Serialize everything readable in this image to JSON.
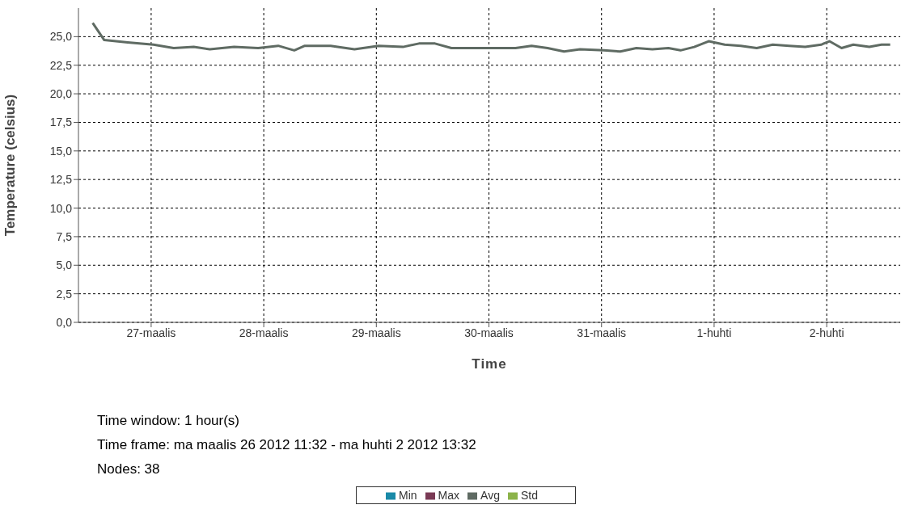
{
  "chart_data": {
    "type": "line",
    "xlabel": "Time",
    "ylabel": "Temperature (celsius)",
    "annotations": [
      "Time window: 1 hour(s)",
      "Time frame: ma maalis 26 2012 11:32 - ma huhti 2 2012 13:32",
      "Nodes: 38"
    ],
    "xlim": [
      "2012-03-26T08:30",
      "2012-04-02T15:40"
    ],
    "xticks": [
      {
        "value": "2012-03-27",
        "label": "27-maalis"
      },
      {
        "value": "2012-03-28",
        "label": "28-maalis"
      },
      {
        "value": "2012-03-29",
        "label": "29-maalis"
      },
      {
        "value": "2012-03-30",
        "label": "30-maalis"
      },
      {
        "value": "2012-03-31",
        "label": "31-maalis"
      },
      {
        "value": "2012-04-01",
        "label": "1-huhti"
      },
      {
        "value": "2012-04-02",
        "label": "2-huhti"
      }
    ],
    "ylim": [
      0,
      27.5
    ],
    "yticks": [
      {
        "value": 0,
        "label": "0,0"
      },
      {
        "value": 2.5,
        "label": "2,5"
      },
      {
        "value": 5,
        "label": "5,0"
      },
      {
        "value": 7.5,
        "label": "7,5"
      },
      {
        "value": 10,
        "label": "10,0"
      },
      {
        "value": 12.5,
        "label": "12,5"
      },
      {
        "value": 15,
        "label": "15,0"
      },
      {
        "value": 17.5,
        "label": "17,5"
      },
      {
        "value": 20,
        "label": "20,0"
      },
      {
        "value": 22.5,
        "label": "22,5"
      },
      {
        "value": 25,
        "label": "25,0"
      }
    ],
    "grid": true,
    "legend": "bottom",
    "marker": "none",
    "line_style": "solid",
    "series": [
      {
        "name": "Min",
        "color": "#1a8aa8"
      },
      {
        "name": "Max",
        "color": "#7a3a55"
      },
      {
        "name": "Avg",
        "color": "#5f6b63",
        "x": [
          "2012-03-26T11:32",
          "2012-03-26T14:00",
          "2012-03-26T19:00",
          "2012-03-27T00:30",
          "2012-03-27T04:48",
          "2012-03-27T09:05",
          "2012-03-27T12:30",
          "2012-03-27T17:40",
          "2012-03-27T22:48",
          "2012-03-28T03:05",
          "2012-03-28T06:30",
          "2012-03-28T08:45",
          "2012-03-28T14:15",
          "2012-03-28T19:20",
          "2012-03-29T00:30",
          "2012-03-29T05:40",
          "2012-03-29T09:05",
          "2012-03-29T12:30",
          "2012-03-29T16:00",
          "2012-03-29T22:50",
          "2012-03-30T05:40",
          "2012-03-30T09:05",
          "2012-03-30T12:30",
          "2012-03-30T16:00",
          "2012-03-30T19:25",
          "2012-03-31T00:30",
          "2012-03-31T04:00",
          "2012-03-31T07:25",
          "2012-03-31T10:50",
          "2012-03-31T14:15",
          "2012-03-31T16:50",
          "2012-03-31T19:45",
          "2012-03-31T22:50",
          "2012-04-01T02:15",
          "2012-04-01T05:40",
          "2012-04-01T09:05",
          "2012-04-01T12:30",
          "2012-04-01T16:00",
          "2012-04-01T19:25",
          "2012-04-01T22:50",
          "2012-04-02T00:35",
          "2012-04-02T03:10",
          "2012-04-02T05:40",
          "2012-04-02T09:05",
          "2012-04-02T11:40",
          "2012-04-02T13:32"
        ],
        "values": [
          26.2,
          24.7,
          24.5,
          24.3,
          24.0,
          24.1,
          23.9,
          24.1,
          24.0,
          24.2,
          23.8,
          24.2,
          24.2,
          23.9,
          24.2,
          24.1,
          24.4,
          24.4,
          24.0,
          24.0,
          24.0,
          24.2,
          24.0,
          23.7,
          23.9,
          23.8,
          23.7,
          24.0,
          23.9,
          24.0,
          23.8,
          24.1,
          24.6,
          24.3,
          24.2,
          24.0,
          24.3,
          24.2,
          24.1,
          24.3,
          24.6,
          24.0,
          24.3,
          24.1,
          24.3,
          24.3
        ]
      },
      {
        "name": "Std",
        "color": "#8cb34a"
      }
    ]
  }
}
